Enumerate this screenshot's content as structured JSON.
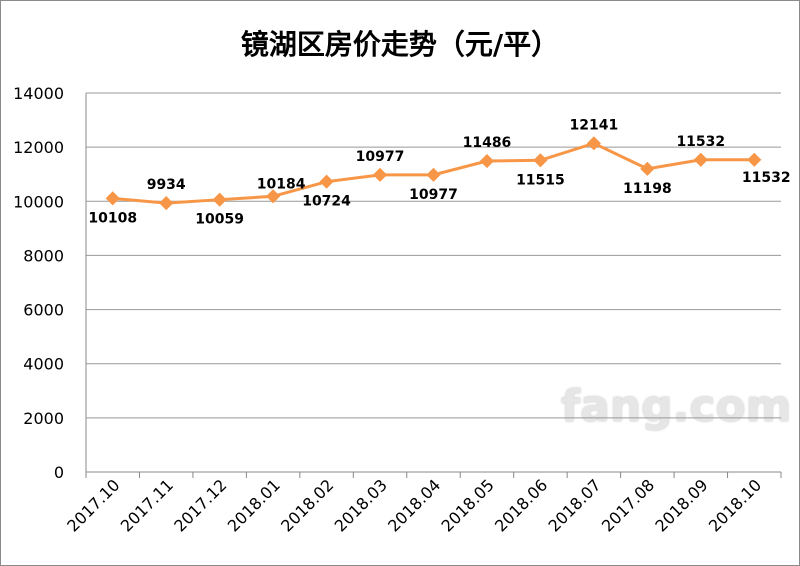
{
  "chart_data": {
    "type": "line",
    "title": "镜湖区房价走势（元/平）",
    "categories": [
      "2017.10",
      "2017.11",
      "2017.12",
      "2018.01",
      "2018.02",
      "2018.03",
      "2018.04",
      "2018.05",
      "2018.06",
      "2018.07",
      "2017.08",
      "2018.09",
      "2018.10"
    ],
    "values": [
      10108,
      9934,
      10059,
      10184,
      10724,
      10977,
      10977,
      11486,
      11515,
      12141,
      11198,
      11532,
      11532
    ],
    "ylim": [
      0,
      14000
    ],
    "yticks": [
      0,
      2000,
      4000,
      6000,
      8000,
      10000,
      12000,
      14000
    ],
    "grid": true,
    "legend": "none",
    "line_color": "#f79646"
  },
  "watermark": "fang.com"
}
